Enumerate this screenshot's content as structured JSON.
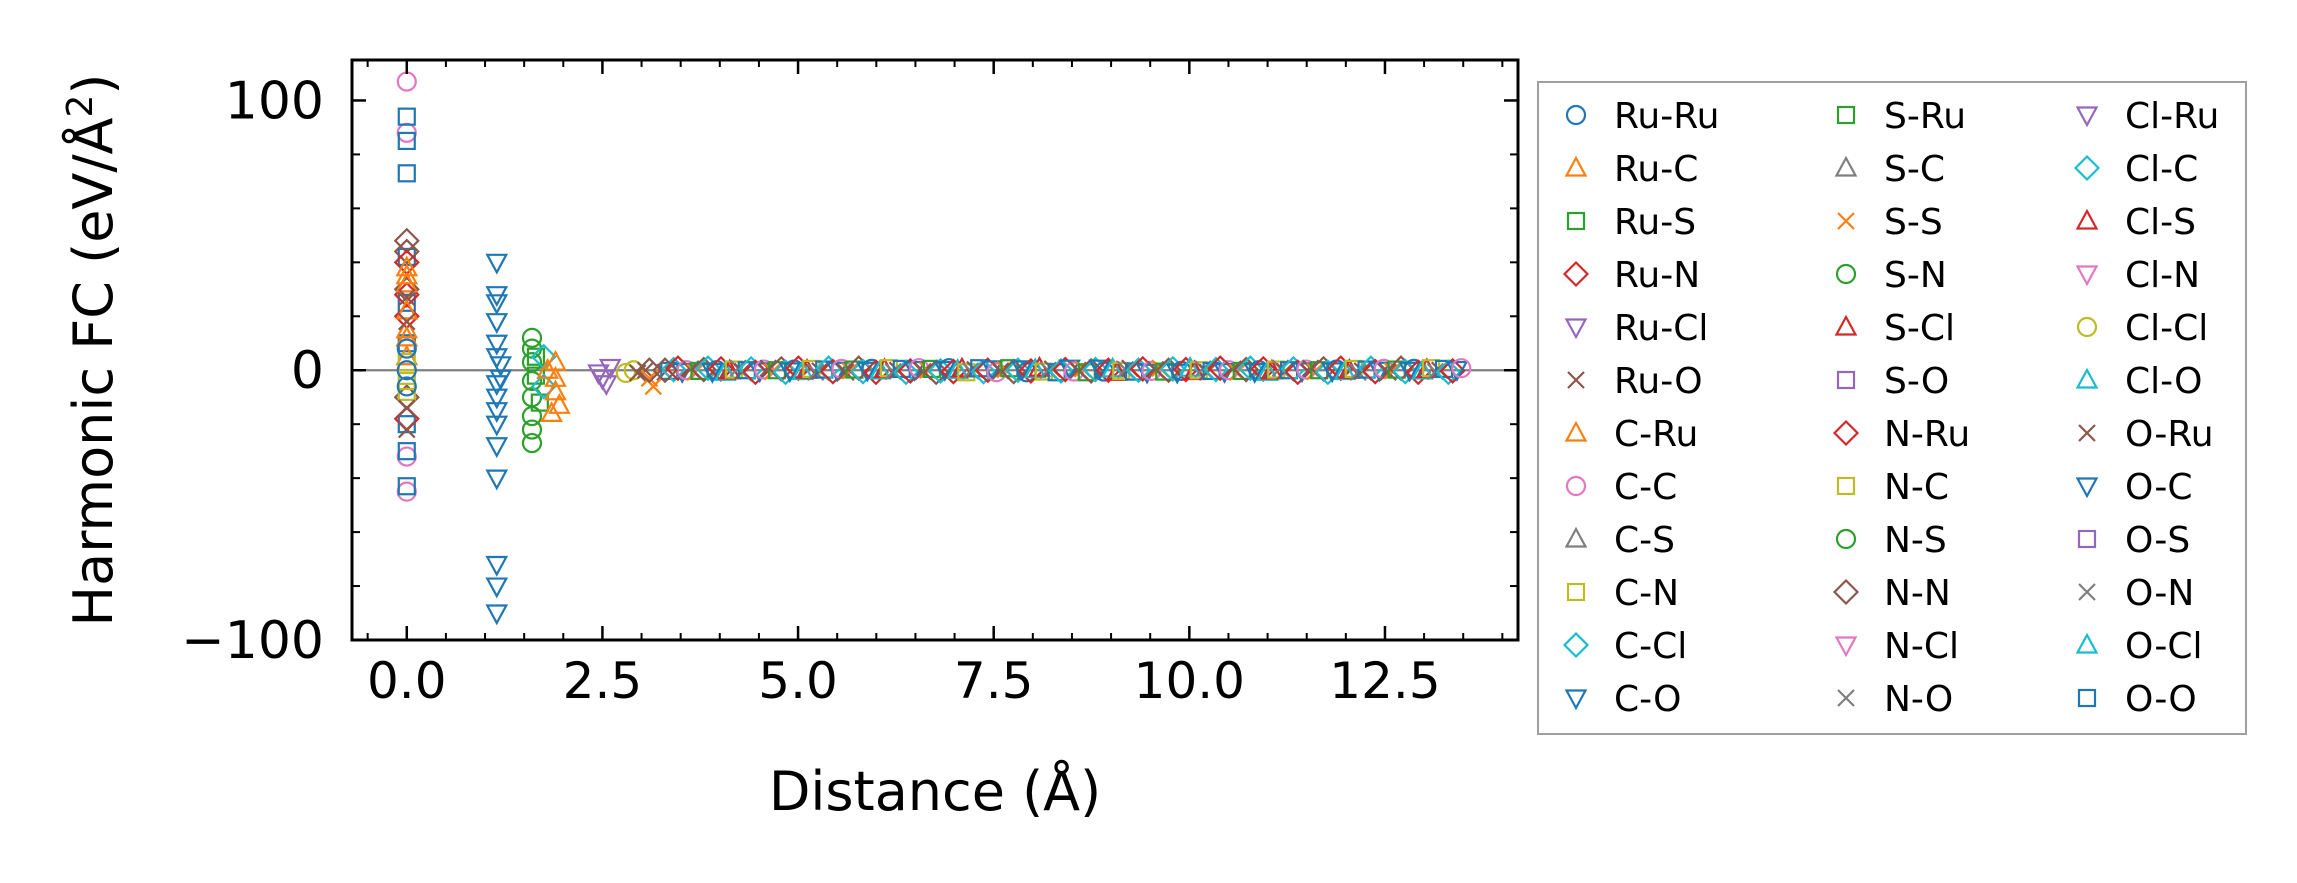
{
  "chart_data": {
    "type": "scatter",
    "xlabel": "Distance (Å)",
    "ylabel_base": "Harmonic FC (eV/Å",
    "ylabel_sup": "2",
    "ylabel_close": ")",
    "xlim": [
      -0.7,
      14.2
    ],
    "ylim": [
      -100,
      115
    ],
    "xticks": [
      0.0,
      2.5,
      5.0,
      7.5,
      10.0,
      12.5
    ],
    "xtick_labels": [
      "0.0",
      "2.5",
      "5.0",
      "7.5",
      "10.0",
      "12.5"
    ],
    "yticks": [
      100,
      0,
      -100
    ],
    "ytick_labels": [
      "100",
      "0",
      "−100"
    ],
    "zero_line": true,
    "grid": false,
    "legend_position": "right-outside",
    "series": [
      {
        "name": "Ru-Ru",
        "marker": "circle",
        "color": "#1f77b4"
      },
      {
        "name": "Ru-C",
        "marker": "triangle-up",
        "color": "#ff7f0e"
      },
      {
        "name": "Ru-S",
        "marker": "square",
        "color": "#2ca02c"
      },
      {
        "name": "Ru-N",
        "marker": "diamond",
        "color": "#d62728"
      },
      {
        "name": "Ru-Cl",
        "marker": "triangle-down",
        "color": "#9467bd"
      },
      {
        "name": "Ru-O",
        "marker": "x",
        "color": "#8c564b"
      },
      {
        "name": "C-Ru",
        "marker": "triangle-up",
        "color": "#ff7f0e"
      },
      {
        "name": "C-C",
        "marker": "circle",
        "color": "#e377c2"
      },
      {
        "name": "C-S",
        "marker": "triangle-up",
        "color": "#7f7f7f"
      },
      {
        "name": "C-N",
        "marker": "square",
        "color": "#bcbd22"
      },
      {
        "name": "C-Cl",
        "marker": "diamond",
        "color": "#17becf"
      },
      {
        "name": "C-O",
        "marker": "triangle-down",
        "color": "#1f77b4"
      },
      {
        "name": "S-Ru",
        "marker": "square",
        "color": "#2ca02c"
      },
      {
        "name": "S-C",
        "marker": "triangle-up",
        "color": "#7f7f7f"
      },
      {
        "name": "S-S",
        "marker": "x",
        "color": "#ff7f0e"
      },
      {
        "name": "S-N",
        "marker": "circle",
        "color": "#2ca02c"
      },
      {
        "name": "S-Cl",
        "marker": "triangle-up",
        "color": "#d62728"
      },
      {
        "name": "S-O",
        "marker": "square",
        "color": "#9467bd"
      },
      {
        "name": "N-Ru",
        "marker": "diamond",
        "color": "#d62728"
      },
      {
        "name": "N-C",
        "marker": "square",
        "color": "#bcbd22"
      },
      {
        "name": "N-S",
        "marker": "circle",
        "color": "#2ca02c"
      },
      {
        "name": "N-N",
        "marker": "diamond",
        "color": "#8c564b"
      },
      {
        "name": "N-Cl",
        "marker": "triangle-down",
        "color": "#e377c2"
      },
      {
        "name": "N-O",
        "marker": "x",
        "color": "#7f7f7f"
      },
      {
        "name": "Cl-Ru",
        "marker": "triangle-down",
        "color": "#9467bd"
      },
      {
        "name": "Cl-C",
        "marker": "diamond",
        "color": "#17becf"
      },
      {
        "name": "Cl-S",
        "marker": "triangle-up",
        "color": "#d62728"
      },
      {
        "name": "Cl-N",
        "marker": "triangle-down",
        "color": "#e377c2"
      },
      {
        "name": "Cl-Cl",
        "marker": "circle",
        "color": "#bcbd22"
      },
      {
        "name": "Cl-O",
        "marker": "triangle-up",
        "color": "#17becf"
      },
      {
        "name": "O-Ru",
        "marker": "x",
        "color": "#8c564b"
      },
      {
        "name": "O-C",
        "marker": "triangle-down",
        "color": "#1f77b4"
      },
      {
        "name": "O-S",
        "marker": "square",
        "color": "#9467bd"
      },
      {
        "name": "O-N",
        "marker": "x",
        "color": "#7f7f7f"
      },
      {
        "name": "O-Cl",
        "marker": "triangle-up",
        "color": "#17becf"
      },
      {
        "name": "O-O",
        "marker": "square",
        "color": "#1f77b4"
      }
    ],
    "points": [
      {
        "s": 7,
        "x": 0.0,
        "y": 107
      },
      {
        "s": 7,
        "x": 0.0,
        "y": 88
      },
      {
        "s": 7,
        "x": 0.0,
        "y": -45
      },
      {
        "s": 7,
        "x": 0.0,
        "y": -32
      },
      {
        "s": 35,
        "x": 0.0,
        "y": 94
      },
      {
        "s": 35,
        "x": 0.0,
        "y": 85
      },
      {
        "s": 35,
        "x": 0.0,
        "y": 73
      },
      {
        "s": 35,
        "x": 0.0,
        "y": -43
      },
      {
        "s": 35,
        "x": 0.0,
        "y": -30
      },
      {
        "s": 35,
        "x": 0.0,
        "y": 42
      },
      {
        "s": 35,
        "x": 0.0,
        "y": 25
      },
      {
        "s": 35,
        "x": 0.0,
        "y": 10
      },
      {
        "s": 35,
        "x": 0.0,
        "y": -20
      },
      {
        "s": 21,
        "x": 0.0,
        "y": 48
      },
      {
        "s": 21,
        "x": 0.0,
        "y": 44
      },
      {
        "s": 21,
        "x": 0.0,
        "y": 30
      },
      {
        "s": 21,
        "x": 0.0,
        "y": -10
      },
      {
        "s": 3,
        "x": 0.0,
        "y": 40
      },
      {
        "s": 3,
        "x": 0.0,
        "y": 28
      },
      {
        "s": 3,
        "x": 0.0,
        "y": 20
      },
      {
        "s": 3,
        "x": 0.0,
        "y": -18
      },
      {
        "s": 1,
        "x": 0.0,
        "y": 38
      },
      {
        "s": 1,
        "x": 0.0,
        "y": 32
      },
      {
        "s": 1,
        "x": 0.0,
        "y": 15
      },
      {
        "s": 1,
        "x": 0.0,
        "y": 5
      },
      {
        "s": 6,
        "x": 0.0,
        "y": 35
      },
      {
        "s": 6,
        "x": 0.0,
        "y": 22
      },
      {
        "s": 6,
        "x": 0.0,
        "y": 12
      },
      {
        "s": 9,
        "x": 0.0,
        "y": -4
      },
      {
        "s": 9,
        "x": 0.0,
        "y": 3
      },
      {
        "s": 9,
        "x": 0.0,
        "y": -8
      },
      {
        "s": 5,
        "x": 0.0,
        "y": 18
      },
      {
        "s": 5,
        "x": 0.0,
        "y": -14
      },
      {
        "s": 5,
        "x": 0.0,
        "y": 27
      },
      {
        "s": 5,
        "x": 0.0,
        "y": -22
      },
      {
        "s": 0,
        "x": 0.0,
        "y": 8
      },
      {
        "s": 0,
        "x": 0.0,
        "y": -6
      },
      {
        "s": 0,
        "x": 0.0,
        "y": 0
      },
      {
        "s": 31,
        "x": 1.15,
        "y": 40
      },
      {
        "s": 31,
        "x": 1.15,
        "y": 28
      },
      {
        "s": 31,
        "x": 1.15,
        "y": 25
      },
      {
        "s": 31,
        "x": 1.15,
        "y": 18
      },
      {
        "s": 31,
        "x": 1.15,
        "y": 10
      },
      {
        "s": 31,
        "x": 1.15,
        "y": 5
      },
      {
        "s": 31,
        "x": 1.15,
        "y": -5
      },
      {
        "s": 31,
        "x": 1.15,
        "y": -10
      },
      {
        "s": 31,
        "x": 1.15,
        "y": -15
      },
      {
        "s": 31,
        "x": 1.15,
        "y": -20
      },
      {
        "s": 31,
        "x": 1.15,
        "y": -28
      },
      {
        "s": 31,
        "x": 1.15,
        "y": -40
      },
      {
        "s": 31,
        "x": 1.15,
        "y": -72
      },
      {
        "s": 31,
        "x": 1.15,
        "y": -80
      },
      {
        "s": 31,
        "x": 1.15,
        "y": -90
      },
      {
        "s": 11,
        "x": 1.2,
        "y": 2
      },
      {
        "s": 11,
        "x": 1.2,
        "y": -3
      },
      {
        "s": 20,
        "x": 1.6,
        "y": 12
      },
      {
        "s": 20,
        "x": 1.6,
        "y": 8
      },
      {
        "s": 20,
        "x": 1.6,
        "y": 3
      },
      {
        "s": 20,
        "x": 1.6,
        "y": -4
      },
      {
        "s": 20,
        "x": 1.6,
        "y": -10
      },
      {
        "s": 20,
        "x": 1.6,
        "y": -17
      },
      {
        "s": 20,
        "x": 1.6,
        "y": -22
      },
      {
        "s": 20,
        "x": 1.6,
        "y": -27
      },
      {
        "s": 2,
        "x": 1.65,
        "y": 5
      },
      {
        "s": 2,
        "x": 1.65,
        "y": -2
      },
      {
        "s": 2,
        "x": 1.7,
        "y": -12
      },
      {
        "s": 10,
        "x": 1.75,
        "y": 5
      },
      {
        "s": 10,
        "x": 1.75,
        "y": -6
      },
      {
        "s": 1,
        "x": 1.9,
        "y": 3
      },
      {
        "s": 1,
        "x": 1.9,
        "y": -3
      },
      {
        "s": 1,
        "x": 1.9,
        "y": -8
      },
      {
        "s": 1,
        "x": 1.95,
        "y": -13
      },
      {
        "s": 1,
        "x": 1.85,
        "y": -16
      },
      {
        "s": 6,
        "x": 1.8,
        "y": 0
      },
      {
        "s": 4,
        "x": 2.45,
        "y": -1
      },
      {
        "s": 4,
        "x": 2.5,
        "y": -3
      },
      {
        "s": 4,
        "x": 2.55,
        "y": -5
      },
      {
        "s": 4,
        "x": 2.6,
        "y": 1
      },
      {
        "s": 28,
        "x": 2.8,
        "y": -1
      },
      {
        "s": 28,
        "x": 2.9,
        "y": 0
      },
      {
        "s": 5,
        "x": 2.95,
        "y": -1
      },
      {
        "s": 5,
        "x": 3.05,
        "y": 0
      },
      {
        "s": 14,
        "x": 3.1,
        "y": -3
      },
      {
        "s": 14,
        "x": 3.15,
        "y": -6
      },
      {
        "s": 21,
        "x": 3.1,
        "y": 0
      },
      {
        "s": 21,
        "x": 3.3,
        "y": 0
      }
    ],
    "dense_band": {
      "x_start": 3.3,
      "x_end": 13.5,
      "y": 0
    }
  }
}
